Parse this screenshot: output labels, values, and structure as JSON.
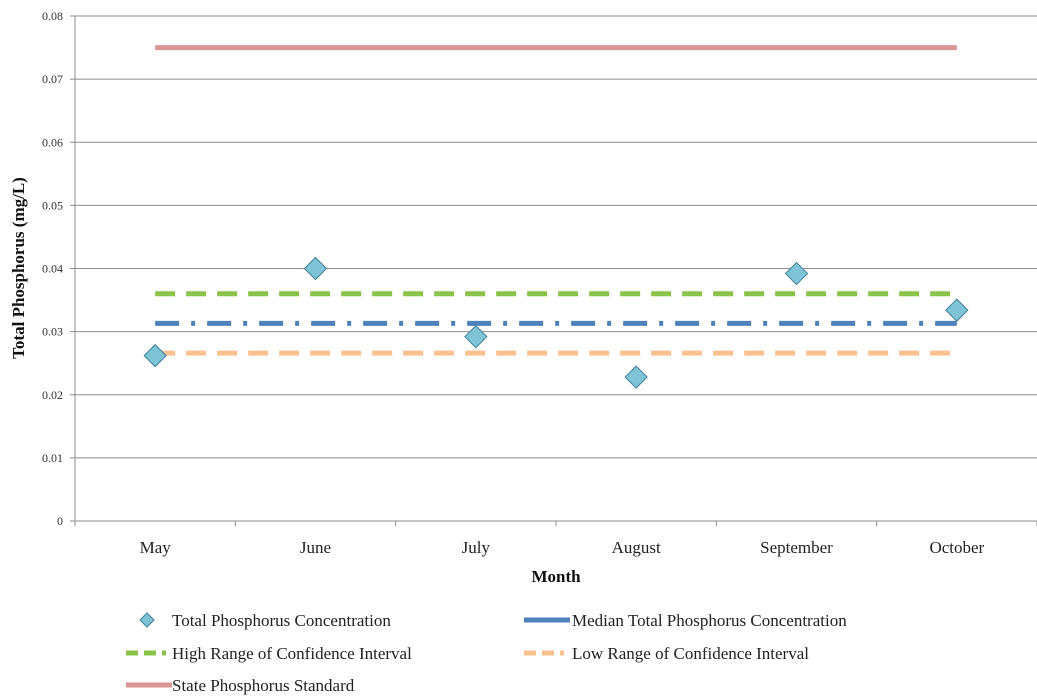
{
  "chart_data": {
    "type": "line",
    "title": "",
    "xlabel": "Month",
    "ylabel": "Total Phosphorus (mg/L)",
    "ylim": [
      0,
      0.08
    ],
    "yticks": [
      "0",
      "0.01",
      "0.02",
      "0.03",
      "0.04",
      "0.05",
      "0.06",
      "0.07",
      "0.08"
    ],
    "categories": [
      "May",
      "June",
      "July",
      "August",
      "September",
      "October"
    ],
    "grid": "horizontal",
    "legend_position": "bottom",
    "scatter": {
      "name": "Total Phosphorus Concentration",
      "color": "#7fc4d6",
      "points": [
        {
          "x": 0.0,
          "y": 0.0262
        },
        {
          "x": 1.0,
          "y": 0.04
        },
        {
          "x": 2.0,
          "y": 0.0292
        },
        {
          "x": 3.0,
          "y": 0.0228
        },
        {
          "x": 4.0,
          "y": 0.0392
        },
        {
          "x": 5.0,
          "y": 0.0334
        }
      ]
    },
    "series": [
      {
        "name": "Median Total Phosphorus Concentration",
        "value": 0.0313,
        "color": "#4f81bd",
        "style": "dash-dot"
      },
      {
        "name": "High Range of Confidence Interval",
        "value": 0.036,
        "color": "#8bc34a",
        "style": "dashed"
      },
      {
        "name": "Low Range of Confidence Interval",
        "value": 0.0266,
        "color": "#fac090",
        "style": "dashed"
      },
      {
        "name": "State Phosphorus Standard",
        "value": 0.075,
        "color": "#d99694",
        "style": "solid"
      }
    ]
  }
}
